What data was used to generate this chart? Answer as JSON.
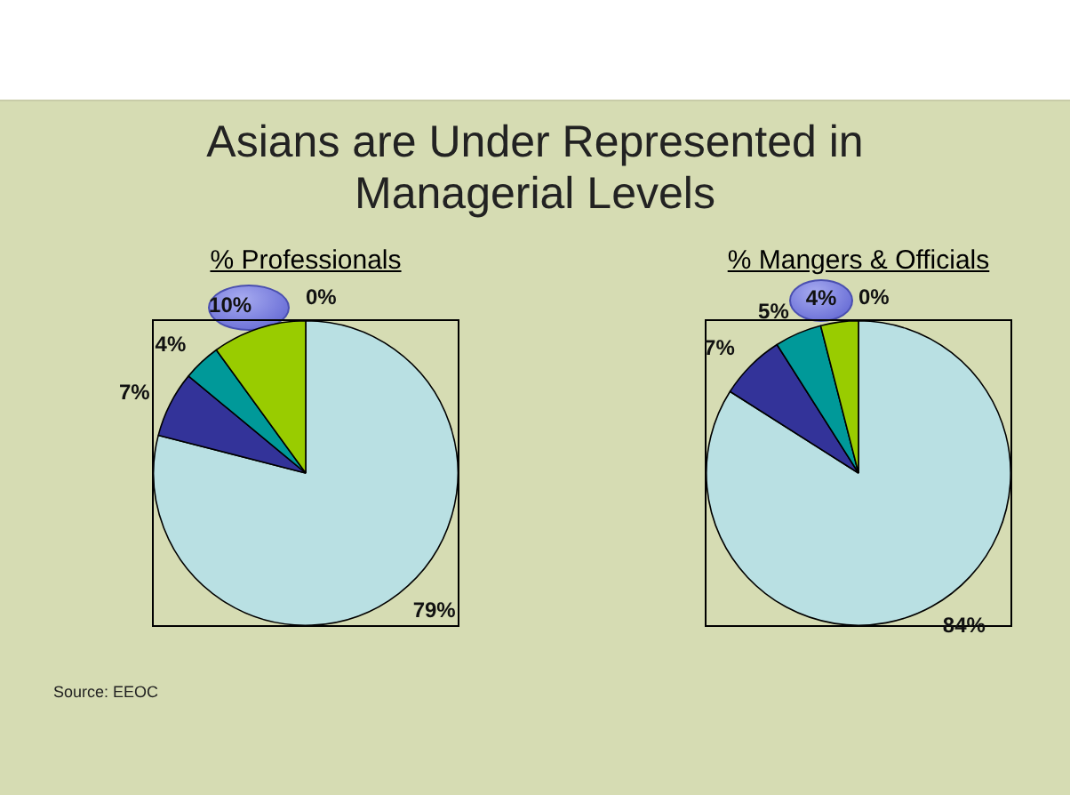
{
  "chart_data": [
    {
      "type": "pie",
      "title": "% Professionals",
      "categories": [
        null,
        null,
        null,
        null,
        null
      ],
      "values": [
        79,
        7,
        4,
        10,
        0
      ],
      "colors": [
        "#b9e0e3",
        "#333399",
        "#009999",
        "#99cc00",
        "#333333"
      ],
      "value_labels": [
        "79%",
        "7%",
        "4%",
        "10%",
        "0%"
      ],
      "annotations": [
        "Asians are Under Represented in Managerial Levels",
        "Source: EEOC"
      ]
    },
    {
      "type": "pie",
      "title": "% Mangers & Officials",
      "categories": [
        null,
        null,
        null,
        null,
        null
      ],
      "values": [
        84,
        7,
        5,
        4,
        0
      ],
      "colors": [
        "#b9e0e3",
        "#333399",
        "#009999",
        "#99cc00",
        "#333333"
      ],
      "value_labels": [
        "84%",
        "7%",
        "5%",
        "4%",
        "0%"
      ]
    }
  ]
}
